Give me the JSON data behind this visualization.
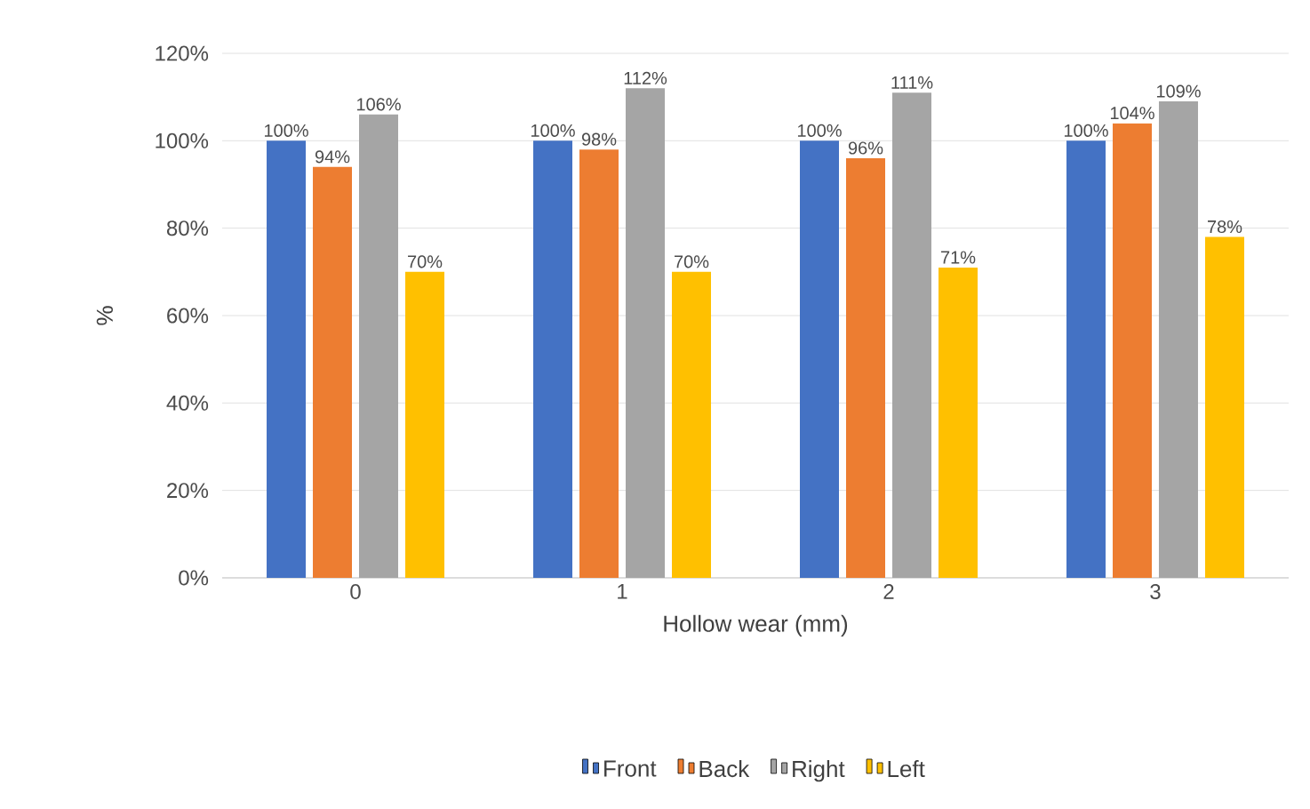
{
  "chart_data": {
    "type": "bar",
    "xlabel": "Hollow wear (mm)",
    "ylabel": "%",
    "categories": [
      "0",
      "1",
      "2",
      "3"
    ],
    "series": [
      {
        "name": "Front",
        "color": "#4472c4",
        "values": [
          100,
          100,
          100,
          100
        ],
        "value_labels": [
          "100%",
          "100%",
          "100%",
          "100%"
        ]
      },
      {
        "name": "Back",
        "color": "#ed7d31",
        "values": [
          94,
          98,
          96,
          104
        ],
        "value_labels": [
          "94%",
          "98%",
          "96%",
          "104%"
        ]
      },
      {
        "name": "Right",
        "color": "#a5a5a5",
        "values": [
          106,
          112,
          111,
          109
        ],
        "value_labels": [
          "106%",
          "112%",
          "111%",
          "109%"
        ]
      },
      {
        "name": "Left",
        "color": "#ffc000",
        "values": [
          70,
          70,
          71,
          78
        ],
        "value_labels": [
          "70%",
          "70%",
          "71%",
          "78%"
        ]
      }
    ],
    "ylim": [
      0,
      120
    ],
    "yticks": [
      {
        "value": 0,
        "label": "0%"
      },
      {
        "value": 20,
        "label": "20%"
      },
      {
        "value": 40,
        "label": "40%"
      },
      {
        "value": 60,
        "label": "60%"
      },
      {
        "value": 80,
        "label": "80%"
      },
      {
        "value": 100,
        "label": "100%"
      },
      {
        "value": 120,
        "label": "120%"
      }
    ],
    "grid": "y",
    "legend": "bottom"
  }
}
